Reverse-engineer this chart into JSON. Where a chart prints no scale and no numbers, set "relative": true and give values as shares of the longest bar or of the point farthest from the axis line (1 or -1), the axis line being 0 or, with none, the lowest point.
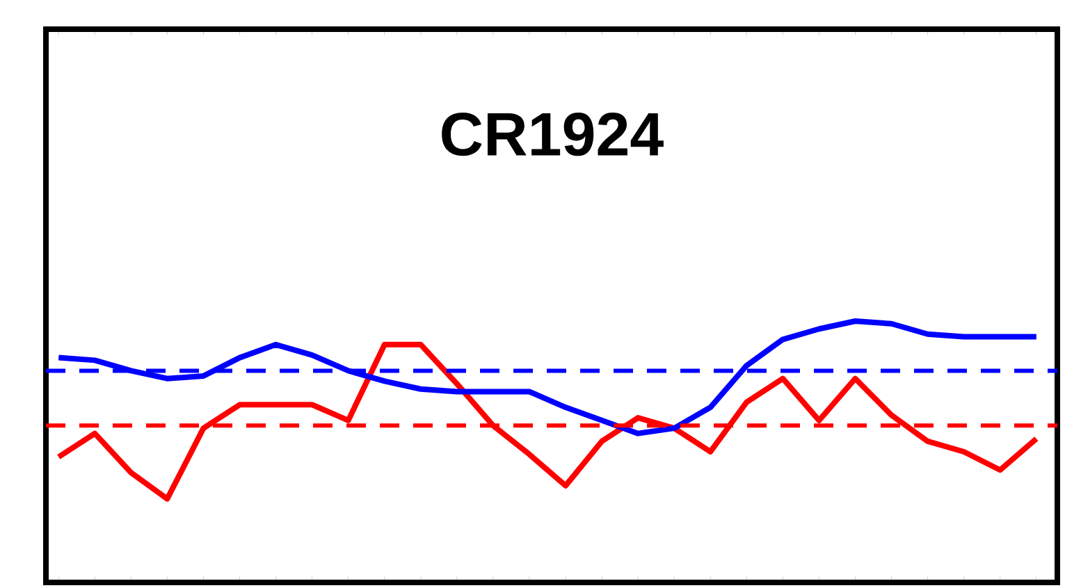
{
  "chart_data": {
    "type": "line",
    "title": "CR1924",
    "relative": true,
    "marker": "none",
    "line_style": "solid",
    "categories": [
      null,
      null,
      null,
      null,
      null,
      null,
      null,
      null,
      null,
      null,
      null,
      null,
      null,
      null,
      null,
      null,
      null,
      null,
      null,
      null,
      null,
      null,
      null,
      null,
      null,
      null,
      null,
      null
    ],
    "series": [
      {
        "color": "#ff0000",
        "values": [
          0.48,
          0.57,
          0.42,
          0.32,
          0.59,
          0.68,
          0.68,
          0.68,
          0.62,
          0.91,
          0.91,
          0.76,
          0.6,
          0.49,
          0.37,
          0.54,
          0.63,
          0.59,
          0.5,
          0.69,
          0.78,
          0.62,
          0.78,
          0.64,
          0.54,
          0.5,
          0.43,
          0.55
        ]
      },
      {
        "color": "#0000ff",
        "values": [
          0.86,
          0.85,
          0.81,
          0.78,
          0.79,
          0.86,
          0.91,
          0.87,
          0.81,
          0.77,
          0.74,
          0.73,
          0.73,
          0.73,
          0.67,
          0.62,
          0.57,
          0.59,
          0.67,
          0.83,
          0.93,
          0.97,
          1,
          0.99,
          0.95,
          0.94,
          0.94,
          0.94
        ]
      }
    ],
    "ref_lines": [
      {
        "axis": "y",
        "value": 0.81,
        "color": "#0000ff",
        "line_style": "dashed"
      },
      {
        "axis": "y",
        "value": 0.6,
        "color": "#ff0000",
        "line_style": "dashed"
      }
    ]
  }
}
